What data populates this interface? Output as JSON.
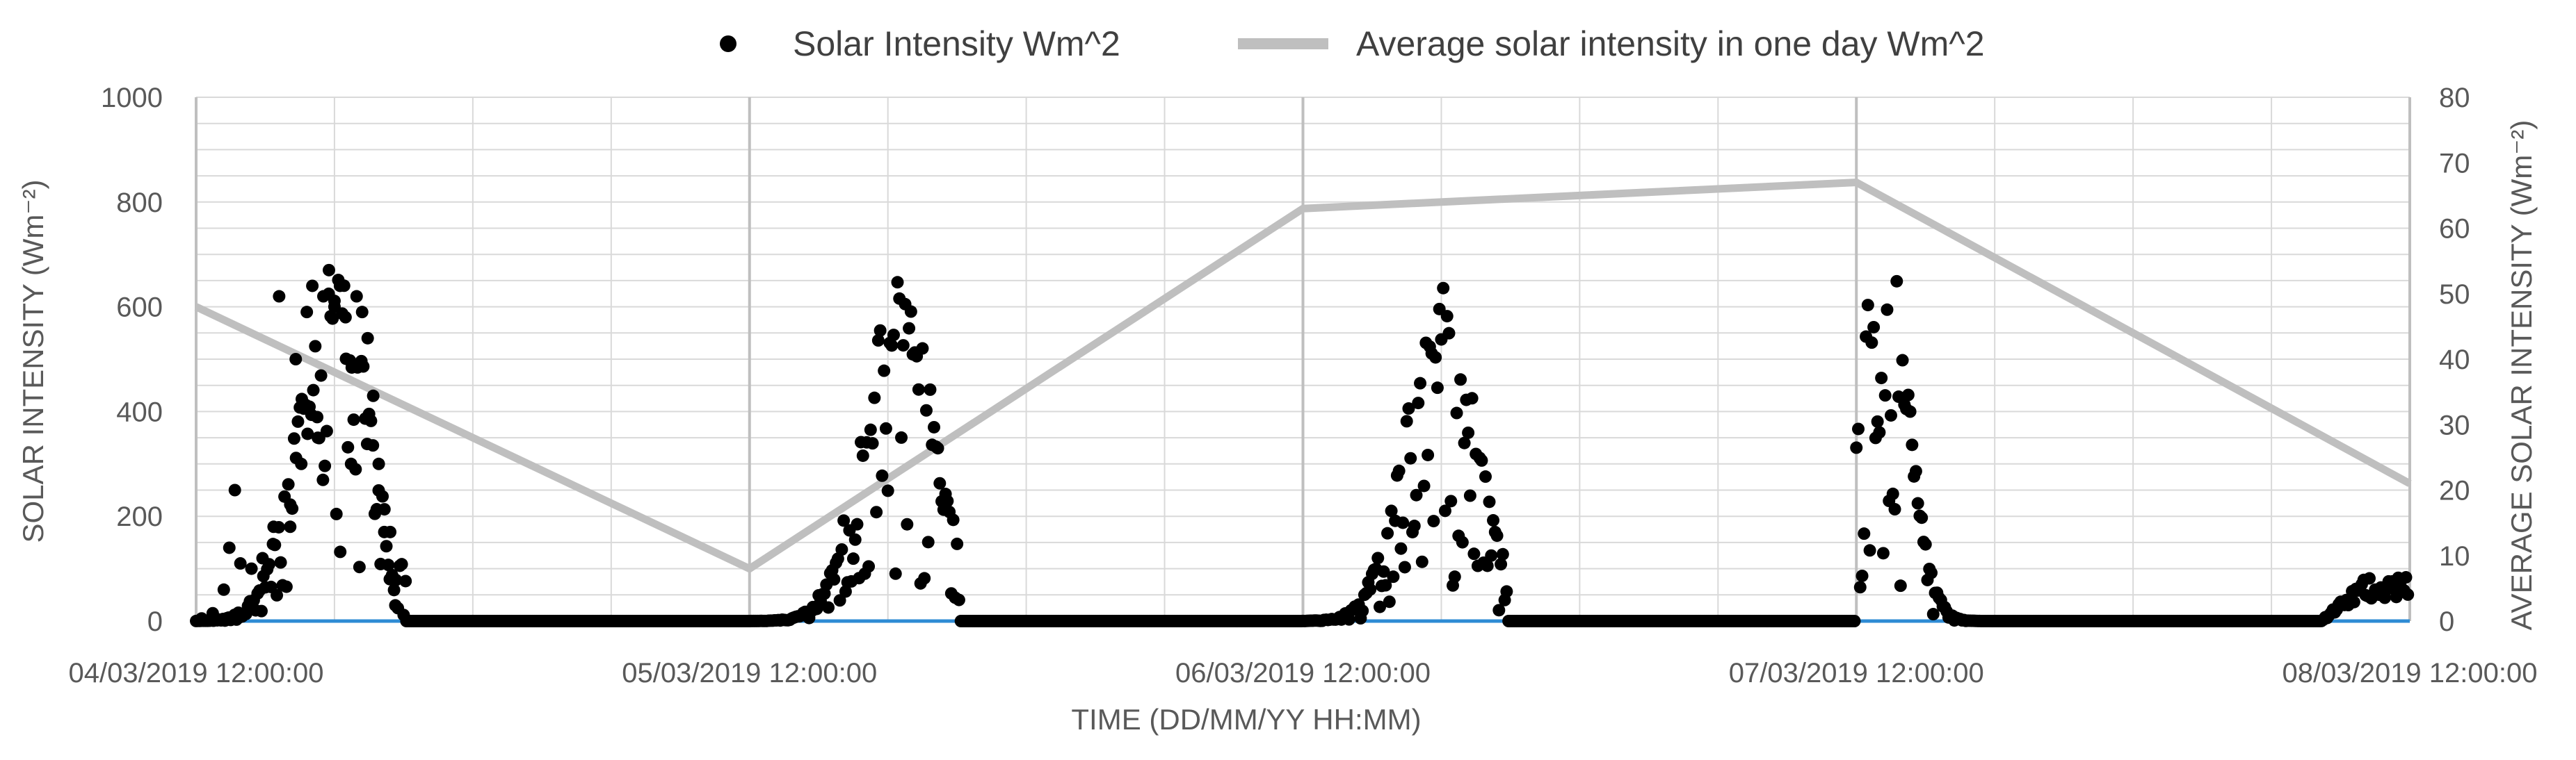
{
  "chart_data": {
    "type": "scatter",
    "title": "",
    "xlabel": "TIME (DD/MM/YY HH:MM)",
    "ylabel_left": "SOLAR INTENSITY (Wm⁻²)",
    "ylabel_right": "AVERAGE SOLAR INTENSITY (Wm⁻²)",
    "xlim_days": [
      0,
      4
    ],
    "x_tick_labels": [
      "04/03/2019 12:00:00",
      "05/03/2019 12:00:00",
      "06/03/2019 12:00:00",
      "07/03/2019 12:00:00",
      "08/03/2019 12:00:00"
    ],
    "ylim_left": [
      0,
      1000
    ],
    "y_ticks_left": [
      0,
      200,
      400,
      600,
      800,
      1000
    ],
    "ylim_right": [
      0,
      80
    ],
    "y_ticks_right": [
      0,
      10,
      20,
      30,
      40,
      50,
      60,
      70,
      80
    ],
    "grid": true,
    "legend_position": "top-center",
    "series": [
      {
        "name": "Solar Intensity Wm^2",
        "kind": "scatter",
        "axis": "left",
        "color": "#000000",
        "days": [
          {
            "start": 0,
            "end": 0.38,
            "peak_center": 0.25,
            "peak_value": 620,
            "width": 0.09
          },
          {
            "start": 1,
            "end": 1.38,
            "peak_center": 1.27,
            "peak_value": 600,
            "width": 0.09
          },
          {
            "start": 2,
            "end": 2.37,
            "peak_center": 2.25,
            "peak_value": 580,
            "width": 0.09
          },
          {
            "start": 3,
            "end": 3.24,
            "peak_center": 3.05,
            "peak_value": 700,
            "width": 0.06
          },
          {
            "start": 3.84,
            "end": 4.0,
            "peak_center": 4.0,
            "peak_value": 85,
            "width": 0.25
          }
        ],
        "x": [
          0.01,
          0.03,
          0.05,
          0.06,
          0.07,
          0.08,
          0.1,
          0.12,
          0.14,
          0.15,
          0.17,
          0.18,
          0.19,
          0.2,
          0.21,
          0.22,
          0.23,
          0.24,
          0.25,
          0.26,
          0.27,
          0.28,
          0.29,
          0.3,
          0.31,
          0.32,
          0.33,
          0.34,
          0.35,
          0.36,
          0.38
        ],
        "y": [
          5,
          15,
          60,
          140,
          250,
          110,
          100,
          120,
          180,
          620,
          180,
          500,
          300,
          590,
          640,
          350,
          620,
          670,
          600,
          640,
          580,
          300,
          620,
          590,
          540,
          430,
          300,
          170,
          80,
          30,
          0
        ]
      },
      {
        "name": "Average solar intensity in one day Wm^2",
        "kind": "line",
        "axis": "right",
        "color": "#bfbfbf",
        "x": [
          0,
          1,
          2,
          3,
          4
        ],
        "y": [
          48,
          8,
          63,
          67,
          21
        ]
      },
      {
        "name": "",
        "kind": "baseline",
        "axis": "left",
        "color": "#2e8bd4",
        "x": [
          0,
          4
        ],
        "y": [
          0,
          0
        ]
      }
    ]
  }
}
